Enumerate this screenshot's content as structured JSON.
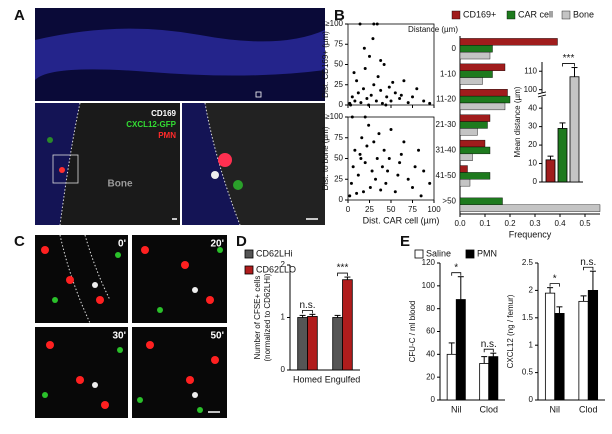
{
  "figure": {
    "panel_labels": [
      "A",
      "B",
      "C",
      "D",
      "E"
    ],
    "image_a": {
      "markers": [
        {
          "text": "CD169",
          "color": "#ffffff"
        },
        {
          "text": "CXCL12-GFP",
          "color": "#33dd33"
        },
        {
          "text": "PMN",
          "color": "#ff2a2a"
        }
      ],
      "region": "Bone"
    },
    "image_c": {
      "timepoints": [
        "0'",
        "20'",
        "30'",
        "50'"
      ]
    }
  },
  "chart_data": [
    {
      "type": "scatter",
      "y_label": "Dist. CD169+ (µm)",
      "color": "#000000",
      "x": [
        2,
        5,
        8,
        10,
        12,
        15,
        18,
        20,
        22,
        25,
        27,
        30,
        33,
        35,
        38,
        40,
        42,
        45,
        48,
        50,
        55,
        60,
        65,
        70,
        75,
        80,
        88,
        95,
        3,
        7,
        14,
        19,
        24,
        29,
        34,
        44,
        52,
        62,
        30,
        38
      ],
      "y": [
        2,
        10,
        5,
        30,
        15,
        3,
        20,
        45,
        8,
        60,
        12,
        25,
        5,
        35,
        18,
        2,
        50,
        10,
        22,
        5,
        15,
        8,
        30,
        3,
        10,
        20,
        5,
        2,
        0,
        40,
        100,
        70,
        0,
        82,
        100,
        0,
        28,
        12,
        100,
        55
      ],
      "xlim": [
        0,
        100
      ],
      "ylim": [
        0,
        100
      ],
      "xticks": [
        0,
        25,
        50,
        75,
        100
      ],
      "yticks": [
        0,
        25,
        50,
        75,
        {
          "value": 100,
          "label": "≥100"
        }
      ]
    },
    {
      "type": "scatter",
      "y_label": "Dist. to bone (µm)",
      "x_label": "Dist. CAR cell (µm)",
      "color": "#000000",
      "x": [
        2,
        4,
        6,
        8,
        10,
        12,
        14,
        16,
        18,
        20,
        22,
        24,
        26,
        28,
        30,
        32,
        34,
        36,
        38,
        40,
        42,
        44,
        46,
        48,
        50,
        55,
        58,
        60,
        62,
        65,
        5,
        20,
        70,
        75,
        78,
        82,
        85,
        88,
        95,
        15
      ],
      "y": [
        5,
        20,
        40,
        60,
        8,
        30,
        55,
        75,
        10,
        45,
        65,
        90,
        15,
        35,
        70,
        25,
        50,
        80,
        12,
        40,
        60,
        20,
        35,
        50,
        85,
        10,
        30,
        45,
        55,
        70,
        100,
        100,
        25,
        15,
        40,
        60,
        5,
        35,
        20,
        50
      ],
      "xlim": [
        0,
        100
      ],
      "ylim": [
        0,
        100
      ],
      "xticks": [
        0,
        25,
        50,
        75,
        100
      ],
      "yticks": [
        0,
        25,
        50,
        75,
        {
          "value": 100,
          "label": "≥100"
        }
      ]
    },
    {
      "type": "bar",
      "orientation": "horizontal",
      "category_label": "Distance (µm)",
      "x_label": "Frequency",
      "categories": [
        "0",
        "1-10",
        "11-20",
        "21-30",
        "31-40",
        "41-50",
        ">50"
      ],
      "series": [
        {
          "name": "CD169+",
          "color": "#a01c1c",
          "values": [
            0.39,
            0.18,
            0.19,
            0.12,
            0.1,
            0.03,
            0.0
          ]
        },
        {
          "name": "CAR cell",
          "color": "#1e7a1e",
          "values": [
            0.13,
            0.13,
            0.2,
            0.11,
            0.12,
            0.12,
            0.17
          ]
        },
        {
          "name": "Bone",
          "color": "#c4c4c4",
          "values": [
            0.12,
            0.09,
            0.18,
            0.07,
            0.05,
            0.04,
            0.56
          ]
        }
      ],
      "xlim": [
        0,
        0.56
      ],
      "xticks": [
        {
          "value": 0,
          "label": "0.0"
        },
        0.1,
        0.2,
        0.3,
        0.4,
        0.5
      ]
    },
    {
      "type": "bar",
      "y_label": "Mean distance (µm)",
      "values": [
        12,
        29,
        107
      ],
      "errors": [
        2,
        3,
        5
      ],
      "colors": [
        "#a01c1c",
        "#1e7a1e",
        "#c4c4c4"
      ],
      "ylim": [
        0,
        115
      ],
      "axis_break": [
        45,
        95
      ],
      "yticks": [
        0,
        10,
        20,
        30,
        40,
        100,
        110
      ],
      "annotations": [
        "***"
      ]
    },
    {
      "type": "bar",
      "y_label": [
        "Number of CFSE+ cells",
        "(normalized to CD62LHi)"
      ],
      "categories": [
        "Homed",
        "Engulfed"
      ],
      "series": [
        {
          "name": "CD62LHi",
          "color": "#555555",
          "values": [
            1.0,
            1.0
          ],
          "errors": [
            0.04,
            0.04
          ]
        },
        {
          "name": "CD62LLO",
          "color": "#b01c1c",
          "values": [
            1.02,
            1.72
          ],
          "errors": [
            0.04,
            0.05
          ]
        }
      ],
      "ylim": [
        0,
        2
      ],
      "yticks": [
        0,
        1,
        2
      ],
      "annotations": [
        "n.s.",
        "***"
      ]
    },
    {
      "type": "bar",
      "y_label": "CFU-C / ml blood",
      "categories": [
        "Nil",
        "Clod"
      ],
      "series": [
        {
          "name": "Saline",
          "color": "#ffffff",
          "values": [
            40,
            32
          ],
          "errors": [
            10,
            6
          ]
        },
        {
          "name": "PMN",
          "color": "#000000",
          "values": [
            88,
            38
          ],
          "errors": [
            20,
            3
          ]
        }
      ],
      "ylim": [
        0,
        120
      ],
      "yticks": [
        0,
        20,
        40,
        60,
        80,
        100,
        120
      ],
      "annotations": [
        "*",
        "n.s."
      ]
    },
    {
      "type": "bar",
      "y_label": "CXCL12 (ng / femur)",
      "categories": [
        "Nil",
        "Clod"
      ],
      "series": [
        {
          "color": "#ffffff",
          "values": [
            1.95,
            1.8
          ],
          "errors": [
            0.1,
            0.1
          ]
        },
        {
          "color": "#000000",
          "values": [
            1.58,
            2.0
          ],
          "errors": [
            0.12,
            0.35
          ]
        }
      ],
      "ylim": [
        0,
        2.5
      ],
      "yticks": [
        0,
        0.5,
        1,
        1.5,
        2,
        2.5
      ],
      "annotations": [
        "*",
        "n.s."
      ]
    }
  ]
}
